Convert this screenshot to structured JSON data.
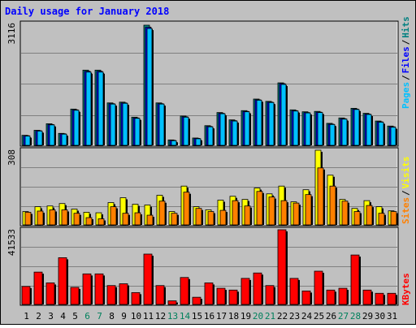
{
  "title": "Daily usage for January 2018",
  "colors": {
    "background": "#c0c0c0",
    "plot_bg": "#c0c0c0",
    "grid": "#808080",
    "title": "#0000ff",
    "hits": "#008080",
    "files": "#0000ff",
    "pages": "#00c0ff",
    "visits": "#ffff00",
    "sites": "#ff8000",
    "kbytes": "#ff0000",
    "weekend_label": "#00805c",
    "weekday_label": "#000000"
  },
  "chart_data": [
    {
      "type": "bar",
      "panel": "hits-files-pages",
      "title": "Daily usage for January 2018",
      "ymax_label": "3116",
      "ylim": [
        0,
        3116
      ],
      "grid": true,
      "legend_position": "right-vertical",
      "legend": [
        "Pages",
        "Files",
        "Hits"
      ],
      "categories": [
        "1",
        "2",
        "3",
        "4",
        "5",
        "6",
        "7",
        "8",
        "9",
        "10",
        "11",
        "12",
        "13",
        "14",
        "15",
        "16",
        "17",
        "18",
        "19",
        "20",
        "21",
        "22",
        "23",
        "24",
        "25",
        "26",
        "27",
        "28",
        "29",
        "30",
        "31"
      ],
      "series": [
        {
          "name": "Hits",
          "values": [
            260,
            390,
            560,
            310,
            940,
            1950,
            1950,
            1100,
            1120,
            730,
            3116,
            1100,
            140,
            760,
            190,
            510,
            850,
            660,
            900,
            1200,
            1140,
            1620,
            920,
            870,
            880,
            570,
            710,
            960,
            830,
            630,
            500
          ]
        },
        {
          "name": "Files",
          "values": [
            250,
            380,
            540,
            300,
            920,
            1920,
            1920,
            1080,
            1100,
            710,
            3060,
            1080,
            130,
            740,
            180,
            490,
            830,
            640,
            880,
            1180,
            1120,
            1600,
            900,
            850,
            860,
            550,
            690,
            940,
            810,
            610,
            480
          ]
        },
        {
          "name": "Pages",
          "values": [
            240,
            370,
            530,
            290,
            910,
            1900,
            1900,
            1070,
            1090,
            700,
            3030,
            1070,
            120,
            730,
            170,
            480,
            820,
            630,
            870,
            1170,
            1110,
            1580,
            890,
            840,
            850,
            540,
            680,
            930,
            800,
            600,
            470
          ]
        }
      ]
    },
    {
      "type": "bar",
      "panel": "visits-sites",
      "ymax_label": "308",
      "ylim": [
        0,
        308
      ],
      "grid": true,
      "legend_position": "right-vertical",
      "legend": [
        "Sites",
        "Visits"
      ],
      "categories": [
        "1",
        "2",
        "3",
        "4",
        "5",
        "6",
        "7",
        "8",
        "9",
        "10",
        "11",
        "12",
        "13",
        "14",
        "15",
        "16",
        "17",
        "18",
        "19",
        "20",
        "21",
        "22",
        "23",
        "24",
        "25",
        "26",
        "27",
        "28",
        "29",
        "30",
        "31"
      ],
      "series": [
        {
          "name": "Visits",
          "values": [
            55,
            75,
            78,
            88,
            65,
            52,
            50,
            92,
            112,
            85,
            82,
            122,
            55,
            160,
            75,
            62,
            102,
            118,
            105,
            152,
            128,
            160,
            95,
            145,
            308,
            205,
            105,
            68,
            100,
            75,
            58
          ]
        },
        {
          "name": "Sites",
          "values": [
            52,
            57,
            62,
            62,
            48,
            30,
            25,
            75,
            48,
            50,
            40,
            98,
            48,
            135,
            68,
            55,
            60,
            100,
            78,
            138,
            115,
            100,
            90,
            125,
            235,
            160,
            98,
            55,
            80,
            48,
            55
          ]
        }
      ]
    },
    {
      "type": "bar",
      "panel": "kbytes",
      "ymax_label": "41533",
      "ylim": [
        0,
        41533
      ],
      "grid": true,
      "legend_position": "right-vertical",
      "legend": [
        "KBytes"
      ],
      "categories": [
        "1",
        "2",
        "3",
        "4",
        "5",
        "6",
        "7",
        "8",
        "9",
        "10",
        "11",
        "12",
        "13",
        "14",
        "15",
        "16",
        "17",
        "18",
        "19",
        "20",
        "21",
        "22",
        "23",
        "24",
        "25",
        "26",
        "27",
        "28",
        "29",
        "30",
        "31"
      ],
      "series": [
        {
          "name": "KBytes",
          "values": [
            10000,
            18000,
            12000,
            26000,
            9500,
            17000,
            17000,
            10500,
            11500,
            6600,
            28000,
            10500,
            2000,
            15000,
            4000,
            12000,
            9000,
            8000,
            14500,
            17500,
            10500,
            41533,
            14500,
            7500,
            18500,
            8000,
            9000,
            27500,
            8000,
            6200,
            6200
          ]
        }
      ]
    }
  ]
}
